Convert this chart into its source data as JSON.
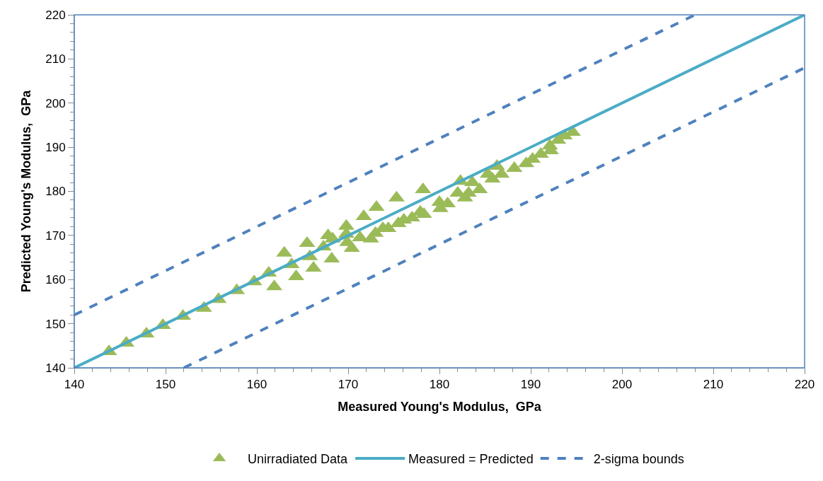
{
  "chart_data": {
    "type": "scatter",
    "xlabel": "Measured Young's Modulus,  GPa",
    "ylabel": "Predicted Young's Modulus,  GPa",
    "xlim": [
      140,
      220
    ],
    "ylim": [
      140,
      220
    ],
    "xticks": [
      140,
      150,
      160,
      170,
      180,
      190,
      200,
      210,
      220
    ],
    "yticks": [
      140,
      150,
      160,
      170,
      180,
      190,
      200,
      210,
      220
    ],
    "legend": "bottom",
    "series": [
      {
        "name": "Unirradiated Data",
        "marker": "triangle",
        "color": "#9bbb59",
        "x": [
          143.8,
          145.7,
          147.9,
          149.7,
          151.9,
          154.2,
          155.8,
          157.8,
          159.7,
          161.3,
          161.9,
          163.0,
          163.8,
          164.3,
          165.5,
          165.8,
          166.2,
          167.3,
          167.8,
          168.3,
          168.2,
          169.8,
          169.8,
          169.9,
          170.4,
          171.3,
          171.7,
          172.5,
          173.0,
          173.1,
          173.8,
          174.4,
          175.5,
          175.3,
          176.1,
          177.0,
          177.9,
          178.3,
          178.2,
          180.0,
          180.1,
          180.9,
          182.3,
          182.0,
          182.8,
          183.6,
          183.2,
          184.4,
          185.3,
          185.8,
          186.3,
          186.8,
          188.2,
          189.5,
          190.2,
          191.1,
          192.1,
          192.2,
          193.0,
          193.7,
          194.6
        ],
        "values": [
          143.7,
          145.6,
          147.7,
          149.6,
          151.7,
          153.5,
          155.5,
          157.5,
          159.5,
          161.5,
          158.4,
          166.0,
          163.4,
          160.7,
          168.2,
          165.2,
          162.6,
          167.4,
          170.0,
          169.2,
          164.7,
          172.1,
          170.3,
          168.4,
          167.1,
          169.5,
          174.3,
          169.2,
          170.5,
          176.4,
          171.6,
          171.6,
          172.7,
          178.5,
          173.5,
          174.0,
          175.3,
          174.8,
          180.4,
          177.5,
          176.1,
          177.2,
          182.3,
          179.6,
          178.5,
          182.0,
          179.6,
          180.4,
          183.9,
          182.8,
          185.7,
          183.9,
          185.2,
          186.3,
          187.3,
          188.4,
          190.3,
          189.2,
          191.6,
          192.6,
          193.4
        ]
      },
      {
        "name": "Measured = Predicted",
        "type": "line",
        "line_style": "solid",
        "color": "#4bacc6",
        "x": [
          140,
          220
        ],
        "values": [
          140,
          220
        ]
      },
      {
        "name": "2-sigma bounds",
        "type": "line",
        "line_style": "dashed",
        "color": "#4f81bd",
        "x": [
          140,
          208
        ],
        "values": [
          152,
          220
        ]
      },
      {
        "type": "line",
        "line_style": "dashed",
        "color": "#4f81bd",
        "x": [
          152,
          220
        ],
        "values": [
          140,
          208
        ]
      }
    ]
  }
}
